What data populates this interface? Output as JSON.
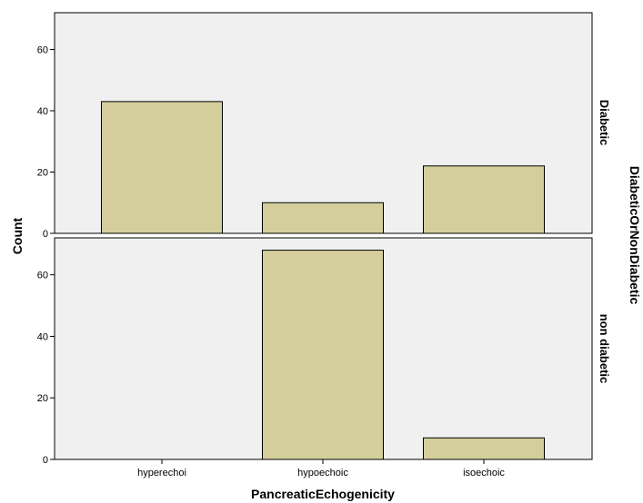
{
  "chart_data": {
    "type": "bar",
    "categories": [
      "hyperechoi",
      "hypoechoic",
      "isoechoic"
    ],
    "series": [
      {
        "name": "Diabetic",
        "values": [
          43,
          10,
          22
        ]
      },
      {
        "name": "non diabetic",
        "values": [
          0,
          68,
          7
        ]
      }
    ],
    "xlabel": "PancreaticEchogenicity",
    "ylabel": "Count",
    "facet_label": "DiabeticOrNonDiabetic",
    "ylim": [
      0,
      72
    ],
    "yticks": [
      0,
      20,
      40,
      60
    ],
    "grid": false,
    "colors": {
      "bar_fill": "#d3ce9b",
      "bar_stroke": "#000000",
      "panel_bg": "#f0f0f0"
    }
  }
}
